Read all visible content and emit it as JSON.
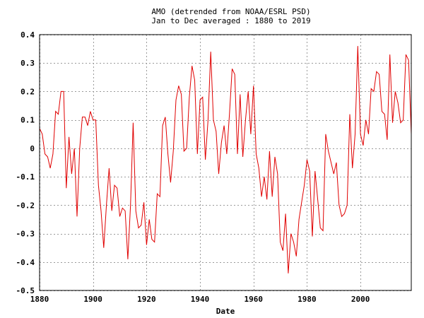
{
  "chart_data": {
    "type": "line",
    "title": "AMO (detrended from NOAA/ESRL PSD)",
    "subtitle": "Jan to Dec averaged : 1880 to 2019",
    "xlabel": "Date",
    "ylabel": "",
    "xlim": [
      1880,
      2019
    ],
    "ylim": [
      -0.5,
      0.4
    ],
    "x_ticks": [
      1880,
      1900,
      1920,
      1940,
      1960,
      1980,
      2000
    ],
    "y_ticks": [
      -0.5,
      -0.4,
      -0.3,
      -0.2,
      -0.1,
      0,
      0.1,
      0.2,
      0.3,
      0.4
    ],
    "x_tick_labels": [
      "1880",
      "1900",
      "1920",
      "1940",
      "1960",
      "1980",
      "2000"
    ],
    "y_tick_labels": [
      "-0.5",
      "-0.4",
      "-0.3",
      "-0.2",
      "-0.1",
      "0",
      "0.1",
      "0.2",
      "0.3",
      "0.4"
    ],
    "grid": true,
    "legend": "none",
    "series_color": "#e00000",
    "x": [
      1880,
      1881,
      1882,
      1883,
      1884,
      1885,
      1886,
      1887,
      1888,
      1889,
      1890,
      1891,
      1892,
      1893,
      1894,
      1895,
      1896,
      1897,
      1898,
      1899,
      1900,
      1901,
      1902,
      1903,
      1904,
      1905,
      1906,
      1907,
      1908,
      1909,
      1910,
      1911,
      1912,
      1913,
      1914,
      1915,
      1916,
      1917,
      1918,
      1919,
      1920,
      1921,
      1922,
      1923,
      1924,
      1925,
      1926,
      1927,
      1928,
      1929,
      1930,
      1931,
      1932,
      1933,
      1934,
      1935,
      1936,
      1937,
      1938,
      1939,
      1940,
      1941,
      1942,
      1943,
      1944,
      1945,
      1946,
      1947,
      1948,
      1949,
      1950,
      1951,
      1952,
      1953,
      1954,
      1955,
      1956,
      1957,
      1958,
      1959,
      1960,
      1961,
      1962,
      1963,
      1964,
      1965,
      1966,
      1967,
      1968,
      1969,
      1970,
      1971,
      1972,
      1973,
      1974,
      1975,
      1976,
      1977,
      1978,
      1979,
      1980,
      1981,
      1982,
      1983,
      1984,
      1985,
      1986,
      1987,
      1988,
      1989,
      1990,
      1991,
      1992,
      1993,
      1994,
      1995,
      1996,
      1997,
      1998,
      1999,
      2000,
      2001,
      2002,
      2003,
      2004,
      2005,
      2006,
      2007,
      2008,
      2009,
      2010,
      2011,
      2012,
      2013,
      2014,
      2015,
      2016,
      2017,
      2018,
      2019
    ],
    "y": [
      0.07,
      0.05,
      -0.02,
      -0.03,
      -0.07,
      -0.02,
      0.13,
      0.12,
      0.2,
      0.2,
      -0.14,
      0.04,
      -0.09,
      -0.0,
      -0.24,
      -0.0,
      0.11,
      0.11,
      0.08,
      0.13,
      0.1,
      0.1,
      -0.13,
      -0.22,
      -0.35,
      -0.2,
      -0.07,
      -0.22,
      -0.13,
      -0.14,
      -0.24,
      -0.21,
      -0.22,
      -0.39,
      -0.2,
      0.09,
      -0.22,
      -0.28,
      -0.27,
      -0.19,
      -0.34,
      -0.25,
      -0.32,
      -0.33,
      -0.16,
      -0.17,
      0.08,
      0.11,
      -0.02,
      -0.12,
      -0.01,
      0.17,
      0.22,
      0.19,
      -0.01,
      0.0,
      0.18,
      0.29,
      0.24,
      -0.02,
      0.17,
      0.18,
      -0.04,
      0.1,
      0.34,
      0.1,
      0.06,
      -0.09,
      0.02,
      0.08,
      -0.02,
      0.12,
      0.28,
      0.26,
      -0.02,
      0.19,
      -0.03,
      0.1,
      0.2,
      0.05,
      0.22,
      -0.02,
      -0.07,
      -0.17,
      -0.1,
      -0.18,
      -0.01,
      -0.17,
      -0.03,
      -0.09,
      -0.33,
      -0.36,
      -0.23,
      -0.44,
      -0.3,
      -0.33,
      -0.38,
      -0.25,
      -0.19,
      -0.13,
      -0.04,
      -0.08,
      -0.31,
      -0.08,
      -0.18,
      -0.28,
      -0.29,
      0.05,
      -0.01,
      -0.05,
      -0.09,
      -0.05,
      -0.2,
      -0.24,
      -0.23,
      -0.2,
      0.12,
      -0.07,
      0.05,
      0.36,
      0.05,
      0.01,
      0.1,
      0.05,
      0.21,
      0.2,
      0.27,
      0.26,
      0.13,
      0.12,
      0.03,
      0.33,
      0.09,
      0.2,
      0.16,
      0.09,
      0.1,
      0.33,
      0.31,
      0.05
    ]
  }
}
